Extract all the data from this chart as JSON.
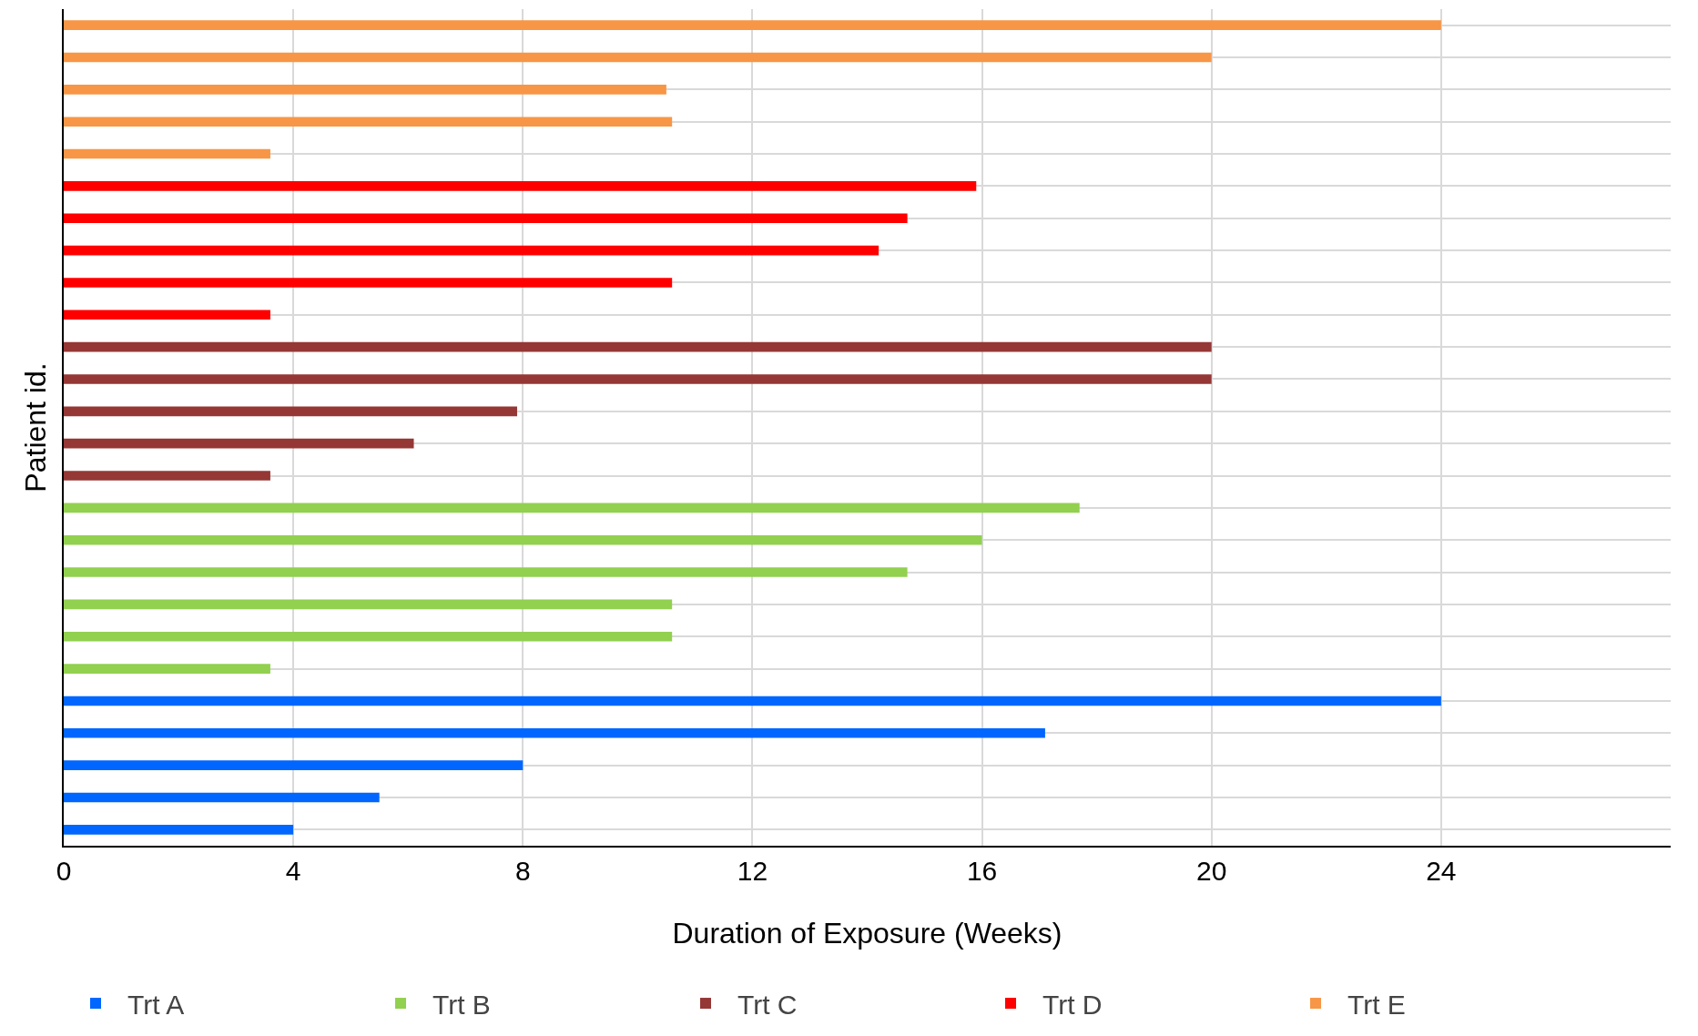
{
  "chart_data": {
    "type": "bar",
    "orientation": "horizontal",
    "xlabel": "Duration of Exposure (Weeks)",
    "ylabel": "Patient id.",
    "categories": [
      null,
      null,
      null,
      null,
      null,
      null,
      null,
      null,
      null,
      null,
      null,
      null,
      null,
      null,
      null,
      null,
      null,
      null,
      null,
      null,
      null,
      null,
      null,
      null,
      null,
      null
    ],
    "series": [
      {
        "name": "Trt A",
        "color": "#0066ff",
        "values": [
          null,
          null,
          null,
          null,
          null,
          null,
          null,
          null,
          null,
          null,
          null,
          null,
          null,
          null,
          null,
          null,
          null,
          null,
          null,
          null,
          null,
          24,
          17.1,
          8,
          5.5,
          4
        ]
      },
      {
        "name": "Trt B",
        "color": "#92d050",
        "values": [
          null,
          null,
          null,
          null,
          null,
          null,
          null,
          null,
          null,
          null,
          null,
          null,
          null,
          null,
          null,
          17.7,
          16,
          14.7,
          10.6,
          10.6,
          3.6,
          null,
          null,
          null,
          null,
          null
        ]
      },
      {
        "name": "Trt C",
        "color": "#953735",
        "values": [
          null,
          null,
          null,
          null,
          null,
          null,
          null,
          null,
          null,
          null,
          20,
          20,
          7.9,
          6.1,
          3.6,
          null,
          null,
          null,
          null,
          null,
          null,
          null,
          null,
          null,
          null,
          null
        ]
      },
      {
        "name": "Trt D",
        "color": "#ff0000",
        "values": [
          null,
          null,
          null,
          null,
          null,
          15.9,
          14.7,
          14.2,
          10.6,
          3.6,
          null,
          null,
          null,
          null,
          null,
          null,
          null,
          null,
          null,
          null,
          null,
          null,
          null,
          null,
          null,
          null
        ]
      },
      {
        "name": "Trt E",
        "color": "#f79646",
        "values": [
          24,
          20,
          10.5,
          10.6,
          3.6,
          null,
          null,
          null,
          null,
          null,
          null,
          null,
          null,
          null,
          null,
          null,
          null,
          null,
          null,
          null,
          null,
          null,
          null,
          null,
          null,
          null
        ]
      }
    ],
    "xlim": [
      0,
      28
    ],
    "xticks": [
      0,
      4,
      8,
      12,
      16,
      20,
      24
    ],
    "grid": true,
    "legend": "bottom",
    "tick_labels": "x"
  }
}
